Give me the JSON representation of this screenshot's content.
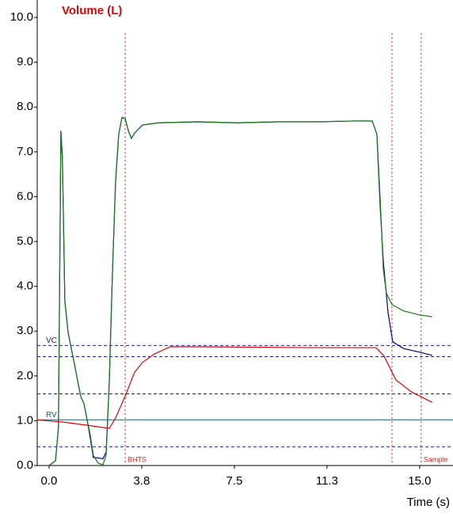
{
  "chart_data": {
    "type": "line",
    "title": "Volume (L)",
    "x_label": "Time (s)",
    "xlim": [
      -0.48,
      16.35
    ],
    "ylim": [
      0,
      10.39
    ],
    "xticks": [
      {
        "value": 0,
        "label": "0.0"
      },
      {
        "value": 3.75,
        "label": "3.8"
      },
      {
        "value": 7.5,
        "label": "7.5"
      },
      {
        "value": 11.25,
        "label": "11.3"
      },
      {
        "value": 15,
        "label": "15.0"
      }
    ],
    "yticks": [
      {
        "value": 0,
        "label": "0.0"
      },
      {
        "value": 1,
        "label": "1.0"
      },
      {
        "value": 2,
        "label": "2.0"
      },
      {
        "value": 3,
        "label": "3.0"
      },
      {
        "value": 4,
        "label": "4.0"
      },
      {
        "value": 5,
        "label": "5.0"
      },
      {
        "value": 6,
        "label": "6.0"
      },
      {
        "value": 7,
        "label": "7.0"
      },
      {
        "value": 8,
        "label": "8.0"
      },
      {
        "value": 9,
        "label": "9.0"
      },
      {
        "value": 10,
        "label": "10.0"
      }
    ],
    "hlines": [
      {
        "value": 2.68,
        "label": "VC",
        "color": "#1c1ca8",
        "style": "dashed"
      },
      {
        "value": 2.43,
        "color": "#1c1ca8",
        "style": "dashed"
      },
      {
        "value": 1.6,
        "color": "#1c1ca8",
        "style": "dashed"
      },
      {
        "value": 1.02,
        "label": "RV",
        "color": "#14607a",
        "style": "solid"
      },
      {
        "value": 0.42,
        "color": "#1c1ca8",
        "style": "dashed"
      }
    ],
    "vlines": [
      {
        "value": 3.08,
        "label": "BHTS",
        "color": "#e02020"
      },
      {
        "value": 13.88,
        "color": "#e02020"
      },
      {
        "value": 15.06,
        "label": "Sample",
        "color": "#e02020"
      }
    ],
    "series": [
      {
        "color": "#000080",
        "x": [
          0,
          0.26,
          0.38,
          0.48,
          0.54,
          0.64,
          0.77,
          0.9,
          1.03,
          1.15,
          1.28,
          1.41,
          1.54,
          1.67,
          1.79,
          1.99,
          2.18,
          2.31,
          2.44,
          2.56,
          2.69,
          2.82,
          2.95,
          3.08,
          3.21,
          3.33,
          3.46,
          3.78,
          4.42,
          6.03,
          7.63,
          9.23,
          10.83,
          12.44,
          13.08,
          13.27,
          13.4,
          13.53,
          13.72,
          13.91,
          14.36,
          15.0,
          15.51
        ],
        "values": [
          0,
          0.11,
          0.85,
          7.47,
          6.86,
          3.67,
          2.97,
          2.61,
          2.26,
          1.91,
          1.55,
          1.38,
          1.02,
          0.6,
          0.18,
          0.17,
          0.15,
          0.3,
          1.91,
          4.2,
          6.33,
          7.39,
          7.77,
          7.74,
          7.47,
          7.3,
          7.42,
          7.6,
          7.65,
          7.67,
          7.65,
          7.67,
          7.67,
          7.69,
          7.69,
          7.39,
          5.8,
          4.56,
          3.41,
          2.76,
          2.61,
          2.53,
          2.46
        ]
      },
      {
        "color": "#1a7a1a",
        "x": [
          0,
          0.26,
          0.38,
          0.48,
          0.54,
          0.64,
          0.77,
          0.9,
          1.03,
          1.15,
          1.28,
          1.41,
          1.54,
          1.67,
          1.79,
          1.99,
          2.18,
          2.31,
          2.44,
          2.56,
          2.69,
          2.82,
          2.95,
          3.08,
          3.21,
          3.33,
          3.46,
          3.78,
          4.42,
          6.03,
          7.63,
          9.23,
          10.83,
          12.44,
          13.08,
          13.27,
          13.4,
          13.53,
          13.65,
          13.88,
          14.36,
          15.0,
          15.51
        ],
        "values": [
          0,
          0.11,
          0.85,
          7.47,
          6.86,
          3.67,
          2.97,
          2.61,
          2.26,
          1.91,
          1.55,
          1.38,
          1.02,
          0.67,
          0.23,
          0.05,
          0.02,
          0.23,
          1.91,
          4.2,
          6.33,
          7.39,
          7.77,
          7.74,
          7.47,
          7.3,
          7.42,
          7.6,
          7.65,
          7.67,
          7.65,
          7.67,
          7.67,
          7.69,
          7.69,
          7.39,
          5.97,
          4.38,
          3.85,
          3.59,
          3.45,
          3.36,
          3.32
        ]
      },
      {
        "color": "#e00000",
        "x": [
          -0.48,
          0.58,
          1.54,
          2.44,
          2.69,
          3.08,
          3.46,
          3.78,
          4.26,
          4.9,
          6.03,
          10.83,
          13.24,
          13.56,
          14.04,
          14.68,
          15.51
        ],
        "values": [
          1.02,
          0.97,
          0.9,
          0.83,
          1.06,
          1.55,
          2.08,
          2.3,
          2.49,
          2.65,
          2.65,
          2.63,
          2.63,
          2.44,
          1.91,
          1.64,
          1.41
        ]
      }
    ]
  }
}
